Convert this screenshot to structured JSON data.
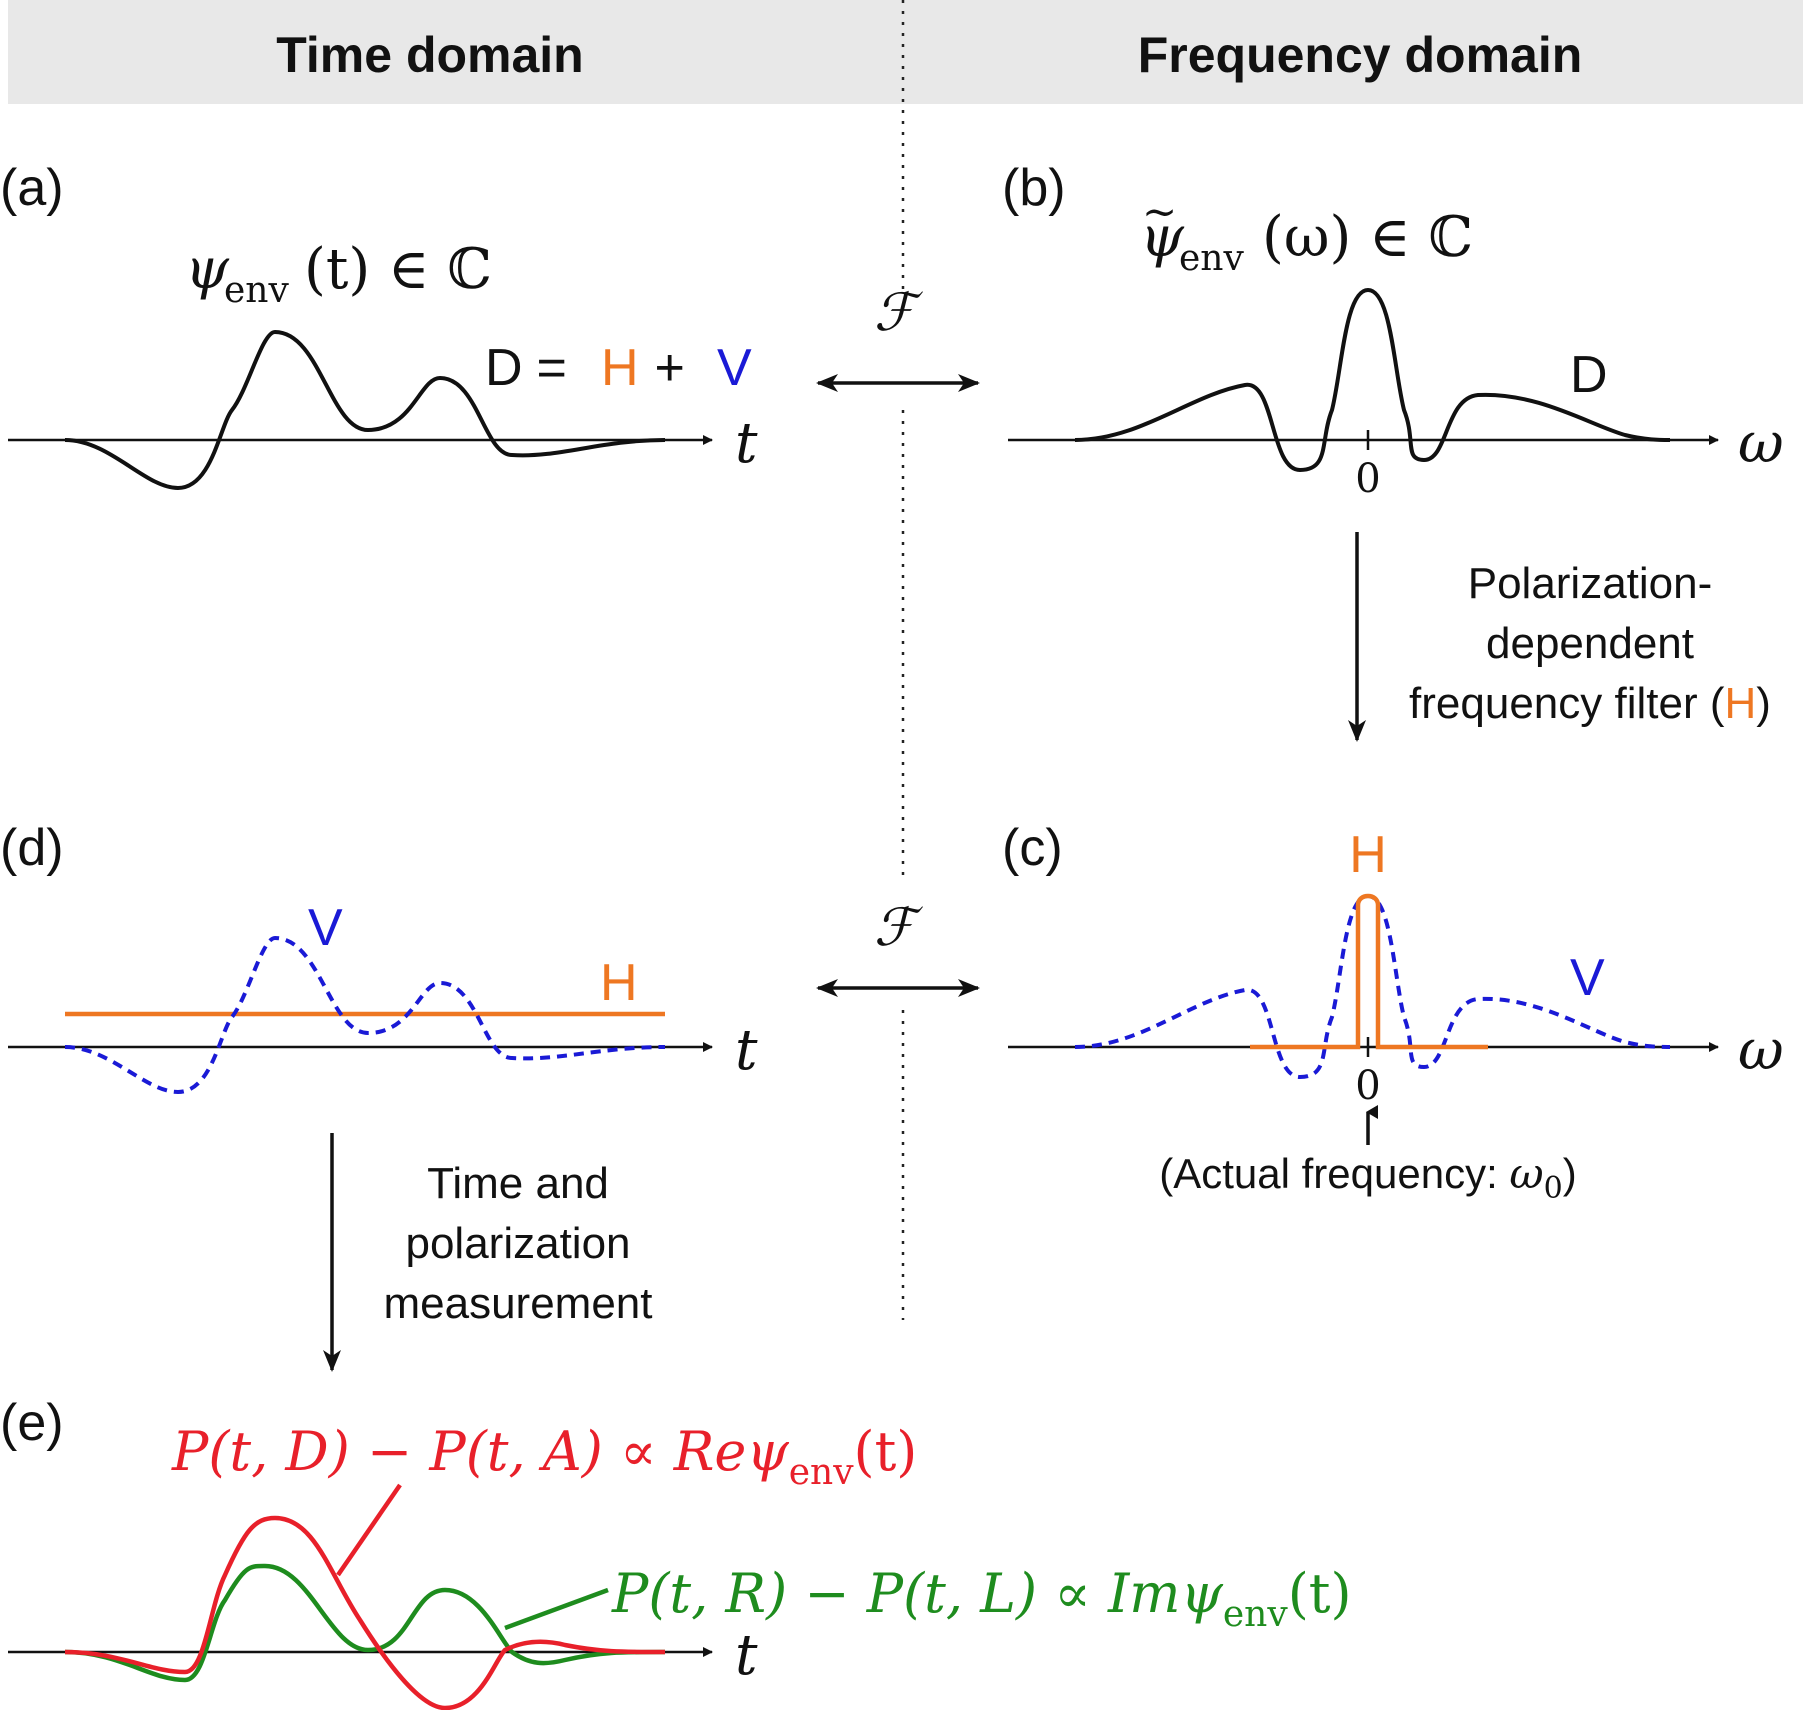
{
  "headers": {
    "time": "Time domain",
    "frequency": "Frequency domain"
  },
  "panels": {
    "a": "(a)",
    "b": "(b)",
    "c": "(c)",
    "d": "(d)",
    "e": "(e)"
  },
  "panel_a": {
    "psi": "ψ",
    "env": "env",
    "rest": "(t) ∈ ℂ",
    "eq_d": "D",
    "eq_eq": " = ",
    "eq_h": "H",
    "eq_plus": " + ",
    "eq_v": "V",
    "axis_label": "t"
  },
  "panel_b": {
    "tilde": "~",
    "psi": "ψ",
    "env": "env",
    "rest": "(ω) ∈ ℂ",
    "curve_label": "D",
    "axis_label": "ω",
    "zero": "0"
  },
  "transform_symbol": "ℱ",
  "filter_text": {
    "line1": "Polarization-",
    "line2": "dependent",
    "line3_pre": "frequency filter (",
    "line3_h": "H",
    "line3_post": ")"
  },
  "panel_c": {
    "h_label": "H",
    "v_label": "V",
    "axis_label": "ω",
    "zero": "0",
    "note_pre": "(Actual frequency: ",
    "note_omega": "ω",
    "note_sub": "0",
    "note_post": ")"
  },
  "panel_d": {
    "v_label": "V",
    "h_label": "H",
    "axis_label": "t"
  },
  "measure_text": {
    "line1": "Time and",
    "line2": "polarization",
    "line3": "measurement"
  },
  "panel_e": {
    "red_lhs": "P(t, D) − P(t, A) ∝ Reψ",
    "red_sub": "env",
    "red_tail": "(t)",
    "green_lhs": "P(t, R) − P(t, L) ∝ Imψ",
    "green_sub": "env",
    "green_tail": "(t)",
    "axis_label": "t"
  },
  "colors": {
    "H": "#ee7722",
    "V": "#1a1ad6",
    "D": "#111111",
    "real_part": "#e8202a",
    "imag_part": "#1e8c1e"
  }
}
